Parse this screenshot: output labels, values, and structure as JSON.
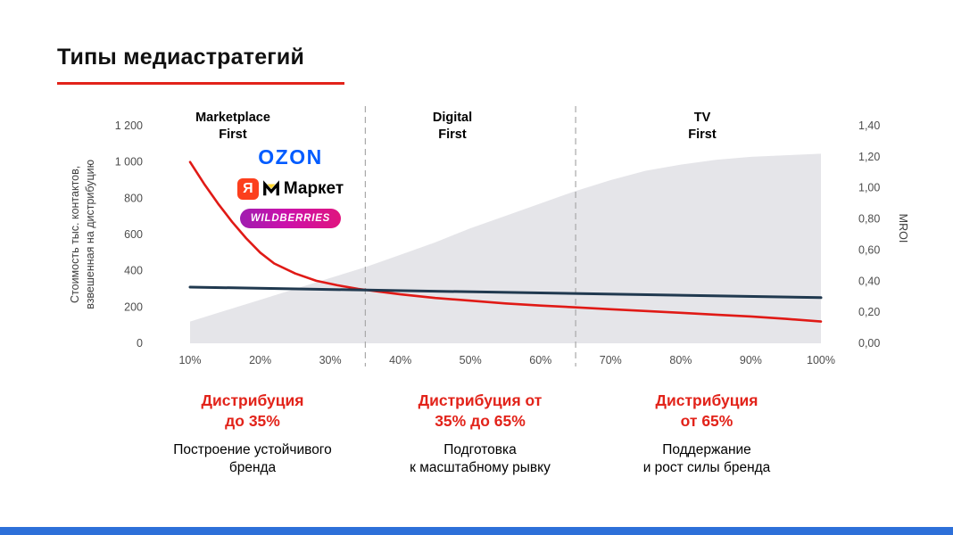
{
  "header": {
    "title": "Типы медиастратегий"
  },
  "accent_color": "#e2231a",
  "footer": {
    "bar_color": "#2d70d9"
  },
  "chart_data": {
    "type": "combo",
    "sections": [
      {
        "label": "Marketplace\nFirst"
      },
      {
        "label": "Digital\nFirst"
      },
      {
        "label": "TV\nFirst"
      }
    ],
    "logos": [
      {
        "name": "ozon",
        "text": "OZON",
        "color": "#005bff"
      },
      {
        "name": "yandex-market",
        "ya": "Я",
        "text": "Маркет"
      },
      {
        "name": "wildberries",
        "text": "WILDBERRIES",
        "color_from": "#a01db0",
        "color_to": "#e0147e"
      }
    ],
    "x_tick_labels": [
      "10%",
      "20%",
      "30%",
      "40%",
      "50%",
      "60%",
      "70%",
      "80%",
      "90%",
      "100%"
    ],
    "x_tick_values": [
      10,
      20,
      30,
      40,
      50,
      60,
      70,
      80,
      90,
      100
    ],
    "left_axis": {
      "label": "Стоимость тыс. контактов,\nвзвешенная на дистрибуцию",
      "tick_labels": [
        "0",
        "200",
        "400",
        "600",
        "800",
        "1 000",
        "1 200"
      ],
      "tick_values": [
        0,
        200,
        400,
        600,
        800,
        1000,
        1200
      ],
      "min": 0,
      "max": 1200
    },
    "right_axis": {
      "label": "MROI",
      "tick_labels": [
        "0,00",
        "0,20",
        "0,40",
        "0,60",
        "0,80",
        "1,00",
        "1,20",
        "1,40"
      ],
      "tick_values": [
        0,
        0.2,
        0.4,
        0.6,
        0.8,
        1.0,
        1.2,
        1.4
      ],
      "min": 0,
      "max": 1.4
    },
    "dividers": [
      35,
      65
    ],
    "series": [
      {
        "name": "mroi-area",
        "type": "area",
        "axis": "right",
        "color": "#e5e5e9",
        "x": [
          10,
          15,
          20,
          25,
          30,
          35,
          40,
          45,
          50,
          55,
          60,
          65,
          70,
          75,
          80,
          85,
          90,
          95,
          100
        ],
        "values": [
          0.14,
          0.21,
          0.28,
          0.35,
          0.42,
          0.49,
          0.57,
          0.65,
          0.74,
          0.82,
          0.9,
          0.98,
          1.05,
          1.11,
          1.15,
          1.18,
          1.2,
          1.21,
          1.22
        ]
      },
      {
        "name": "cost-per-contact",
        "type": "line",
        "axis": "left",
        "color": "#e01a16",
        "width": 2.6,
        "x": [
          10,
          12,
          14,
          16,
          18,
          20,
          22,
          25,
          28,
          31,
          34,
          37,
          40,
          45,
          50,
          55,
          60,
          65,
          70,
          75,
          80,
          85,
          90,
          95,
          100
        ],
        "values": [
          1000,
          880,
          770,
          670,
          580,
          500,
          440,
          385,
          345,
          320,
          300,
          285,
          270,
          250,
          235,
          220,
          208,
          198,
          188,
          178,
          168,
          158,
          148,
          135,
          120
        ]
      },
      {
        "name": "benchmark",
        "type": "line",
        "axis": "left",
        "color": "#20394f",
        "width": 3,
        "x": [
          10,
          100
        ],
        "values": [
          310,
          252
        ]
      }
    ]
  },
  "annotations": [
    {
      "heading": "Дистрибуция\nдо 35%",
      "body": "Построение устойчивого\nбренда"
    },
    {
      "heading": "Дистрибуция от\n35% до 65%",
      "body": "Подготовка\nк масштабному рывку"
    },
    {
      "heading": "Дистрибуция\nот 65%",
      "body": "Поддержание\nи рост силы бренда"
    }
  ]
}
